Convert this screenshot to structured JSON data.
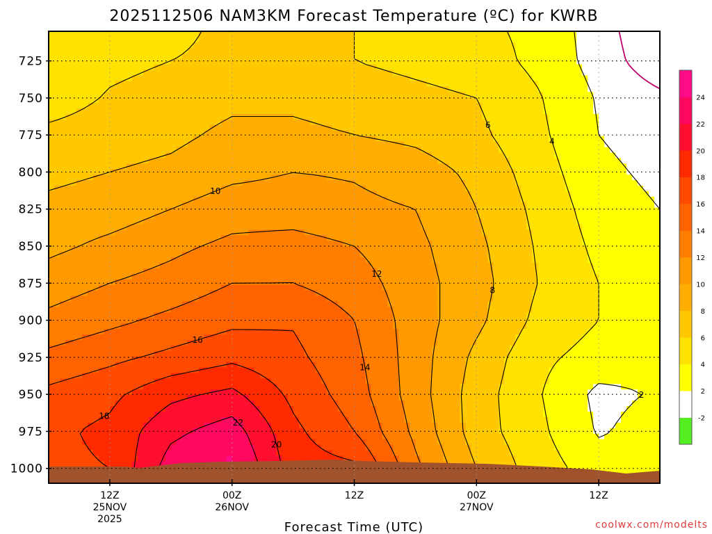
{
  "chart_data": {
    "type": "heatmap",
    "title": "2025112506 NAM3KM Forecast Temperature (ºC) for KWRB",
    "xlabel": "Forecast Time (UTC)",
    "ylabel": "",
    "credit": "coolwx.com/modelts",
    "x_ticks": [
      {
        "hour": 0,
        "label": "12Z",
        "date": "25NOV",
        "year": "2025"
      },
      {
        "hour": 12,
        "label": "00Z",
        "date": "26NOV",
        "year": ""
      },
      {
        "hour": 24,
        "label": "12Z",
        "date": "",
        "year": ""
      },
      {
        "hour": 36,
        "label": "00Z",
        "date": "27NOV",
        "year": ""
      },
      {
        "hour": 48,
        "label": "12Z",
        "date": "",
        "year": ""
      }
    ],
    "xlim": [
      -6,
      54
    ],
    "y_ticks": [
      725,
      750,
      775,
      800,
      825,
      850,
      875,
      900,
      925,
      950,
      975,
      1000
    ],
    "ylim": [
      705,
      1010
    ],
    "colorbar": {
      "levels": [
        -2,
        2,
        4,
        6,
        8,
        10,
        12,
        14,
        16,
        18,
        20,
        22,
        24
      ],
      "colors": [
        "#55ee22",
        "#ffffff",
        "#ffff00",
        "#ffe200",
        "#ffc800",
        "#ffad00",
        "#ff9a00",
        "#ff7e00",
        "#ff6200",
        "#ff4a00",
        "#ff2a00",
        "#ff0e30",
        "#ff0860",
        "#ff0a88"
      ]
    },
    "contour_levels": [
      -2,
      0,
      2,
      4,
      6,
      8,
      10,
      12,
      14,
      16,
      18,
      20,
      22
    ],
    "temperature_grid": {
      "hours": [
        -6,
        0,
        6,
        12,
        18,
        24,
        30,
        36,
        42,
        48,
        54
      ],
      "pressure": [
        705,
        725,
        750,
        775,
        800,
        825,
        850,
        875,
        900,
        925,
        950,
        975,
        1000
      ],
      "values": [
        [
          4.5,
          5.5,
          5.5,
          6.5,
          6.5,
          6.0,
          5.5,
          4.5,
          3.5,
          1.0,
          -2.0
        ],
        [
          4.5,
          5.5,
          6.0,
          6.5,
          6.5,
          6.0,
          5.5,
          5.0,
          3.5,
          1.2,
          -1.5
        ],
        [
          5.0,
          6.2,
          6.8,
          7.5,
          7.5,
          7.0,
          6.5,
          6.0,
          4.2,
          1.8,
          0.5
        ],
        [
          6.5,
          7.0,
          7.5,
          8.5,
          8.5,
          8.0,
          7.5,
          6.5,
          4.5,
          2.0,
          1.0
        ],
        [
          7.5,
          8.0,
          8.5,
          9.5,
          10.0,
          9.8,
          9.0,
          7.5,
          5.0,
          2.5,
          1.5
        ],
        [
          8.5,
          9.0,
          10.0,
          11.0,
          11.0,
          10.5,
          10.0,
          8.0,
          5.5,
          3.0,
          2.0
        ],
        [
          9.5,
          10.5,
          11.5,
          12.5,
          12.8,
          12.0,
          10.5,
          8.5,
          5.8,
          3.5,
          2.5
        ],
        [
          11.0,
          12.0,
          12.8,
          14.0,
          14.0,
          13.0,
          10.8,
          8.8,
          6.0,
          4.0,
          2.8
        ],
        [
          12.5,
          13.5,
          14.5,
          15.5,
          15.8,
          14.0,
          11.0,
          8.5,
          5.5,
          4.0,
          3.0
        ],
        [
          14.5,
          15.5,
          16.5,
          17.5,
          16.5,
          14.5,
          11.0,
          7.5,
          4.5,
          3.2,
          2.5
        ],
        [
          16.5,
          17.5,
          19.5,
          20.5,
          17.5,
          15.0,
          11.0,
          7.0,
          4.2,
          1.5,
          2.2
        ],
        [
          17.5,
          18.5,
          21.5,
          23.0,
          18.5,
          16.0,
          11.5,
          7.0,
          4.5,
          1.8,
          2.8
        ],
        [
          17.5,
          18.0,
          23.0,
          24.5,
          19.0,
          18.5,
          12.5,
          8.0,
          5.0,
          3.0,
          2.5
        ]
      ]
    }
  }
}
